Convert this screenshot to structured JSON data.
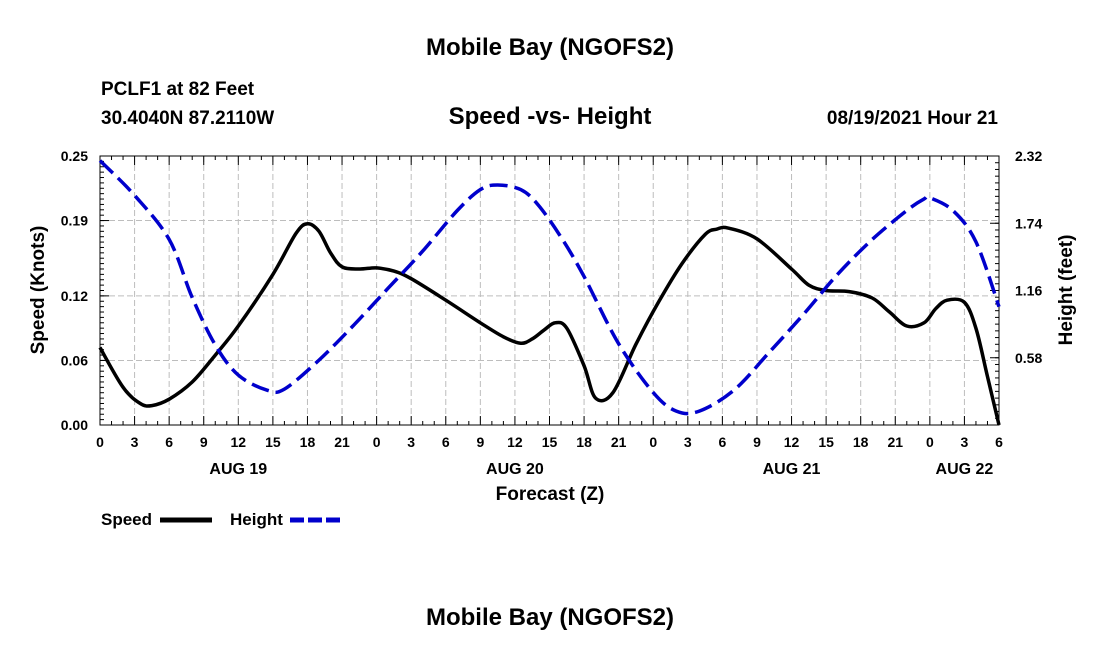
{
  "header": {
    "title": "Mobile Bay (NGOFS2)",
    "station": "PCLF1 at 82 Feet",
    "coords": "30.4040N  87.2110W",
    "datetime": "08/19/2021 Hour 21",
    "footer_title": "Mobile Bay (NGOFS2)"
  },
  "chart_data": {
    "type": "line",
    "title": "Speed -vs- Height",
    "xlabel": "Forecast (Z)",
    "ylabel": "Speed (Knots)",
    "y2label": "Height (feet)",
    "x_unit": "hours since 08/19 00Z",
    "xlim": [
      0,
      78
    ],
    "ylim": [
      0,
      0.25
    ],
    "y2lim": [
      0,
      2.32
    ],
    "grid": true,
    "x_tick_labels": [
      "0",
      "3",
      "6",
      "9",
      "12",
      "15",
      "18",
      "21",
      "0",
      "3",
      "6",
      "9",
      "12",
      "15",
      "18",
      "21",
      "0",
      "3",
      "6",
      "9",
      "12",
      "15",
      "18",
      "21",
      "0",
      "3",
      "6"
    ],
    "day_labels": [
      {
        "label": "AUG 19",
        "hour": 12
      },
      {
        "label": "AUG 20",
        "hour": 36
      },
      {
        "label": "AUG 21",
        "hour": 60
      },
      {
        "label": "AUG 22",
        "hour": 75
      }
    ],
    "y_ticks": [
      0.0,
      0.06,
      0.12,
      0.19,
      0.25
    ],
    "y_tick_labels": [
      "0.00",
      "0.06",
      "0.12",
      "0.19",
      "0.25"
    ],
    "y2_ticks": [
      0.58,
      1.16,
      1.74,
      2.32
    ],
    "y2_tick_labels": [
      "0.58",
      "1.16",
      "1.74",
      "2.32"
    ],
    "legend": [
      {
        "name": "Speed",
        "color": "#000000",
        "dash": "solid"
      },
      {
        "name": "Height",
        "color": "#0000cc",
        "dash": "dashed"
      }
    ],
    "series": [
      {
        "name": "Speed",
        "axis": "left",
        "color": "#000000",
        "x": [
          0,
          2,
          3.5,
          4.5,
          6,
          8,
          10,
          12,
          15,
          17,
          18,
          19,
          20,
          21,
          22.5,
          24,
          25.5,
          27,
          30,
          33,
          35,
          36.5,
          37.5,
          38.5,
          39.5,
          40.5,
          42,
          43,
          44.5,
          46.5,
          48.5,
          50.5,
          52.5,
          53.5,
          54.5,
          57,
          60,
          61.5,
          63,
          65,
          67,
          68.5,
          70,
          71.5,
          72.5,
          73.5,
          75,
          76,
          77,
          78
        ],
        "y": [
          0.072,
          0.035,
          0.02,
          0.018,
          0.024,
          0.04,
          0.065,
          0.092,
          0.14,
          0.178,
          0.187,
          0.18,
          0.16,
          0.147,
          0.145,
          0.146,
          0.143,
          0.136,
          0.116,
          0.095,
          0.082,
          0.076,
          0.08,
          0.088,
          0.095,
          0.09,
          0.055,
          0.025,
          0.03,
          0.075,
          0.115,
          0.15,
          0.177,
          0.182,
          0.183,
          0.173,
          0.145,
          0.13,
          0.125,
          0.124,
          0.118,
          0.105,
          0.092,
          0.095,
          0.108,
          0.116,
          0.114,
          0.09,
          0.045,
          0.0
        ]
      },
      {
        "name": "Height",
        "axis": "right",
        "color": "#0000cc",
        "x": [
          0,
          3,
          6,
          8,
          10,
          12,
          14.5,
          16,
          19,
          22,
          25,
          28,
          31,
          33,
          34.5,
          36.5,
          38,
          40,
          42,
          45,
          48,
          50,
          52,
          55,
          58,
          61,
          64,
          67,
          70,
          71.5,
          72,
          74,
          76,
          78
        ],
        "y": [
          2.28,
          1.98,
          1.6,
          1.1,
          0.69,
          0.43,
          0.3,
          0.31,
          0.56,
          0.86,
          1.18,
          1.5,
          1.85,
          2.03,
          2.07,
          2.03,
          1.9,
          1.62,
          1.28,
          0.7,
          0.28,
          0.12,
          0.12,
          0.3,
          0.62,
          0.95,
          1.3,
          1.6,
          1.85,
          1.95,
          1.96,
          1.85,
          1.58,
          1.02
        ]
      }
    ]
  }
}
